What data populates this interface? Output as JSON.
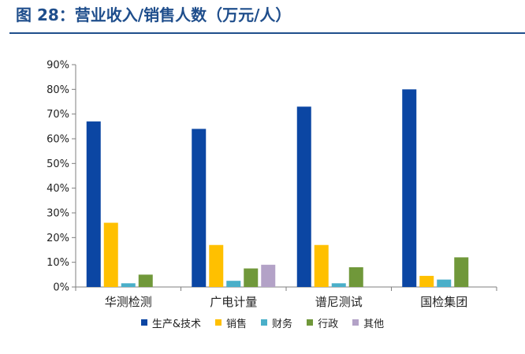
{
  "figure": {
    "label": "图 28：",
    "title": "营业收入/销售人数（万元/人）"
  },
  "chart_data": {
    "type": "bar",
    "categories": [
      "华测检测",
      "广电计量",
      "谱尼测试",
      "国检集团"
    ],
    "series": [
      {
        "name": "生产&技术",
        "color": "#0b46a3",
        "values": [
          67,
          64,
          73,
          80
        ]
      },
      {
        "name": "销售",
        "color": "#ffc000",
        "values": [
          26,
          17,
          17,
          4.5
        ]
      },
      {
        "name": "财务",
        "color": "#4aafc9",
        "values": [
          1.5,
          2.5,
          1.5,
          3
        ]
      },
      {
        "name": "行政",
        "color": "#70983a",
        "values": [
          5,
          7.5,
          8,
          12
        ]
      },
      {
        "name": "其他",
        "color": "#b3a2c7",
        "values": [
          0,
          9,
          0,
          0
        ]
      }
    ],
    "ylim": [
      0,
      90
    ],
    "yticks": [
      "0%",
      "10%",
      "20%",
      "30%",
      "40%",
      "50%",
      "60%",
      "70%",
      "80%",
      "90%"
    ],
    "grid": false,
    "legend_position": "bottom"
  }
}
